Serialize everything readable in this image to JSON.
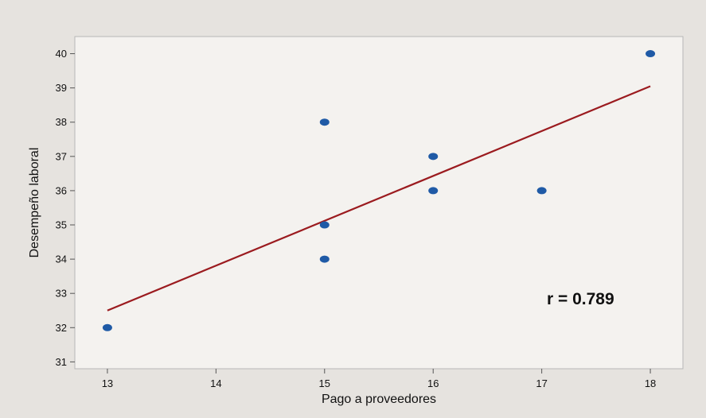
{
  "chart_data": {
    "type": "scatter",
    "title": "",
    "xlabel": "Pago a proveedores",
    "ylabel": "Desempeño laboral",
    "xlim": [
      12.7,
      18.3
    ],
    "ylim": [
      30.8,
      40.5
    ],
    "x_ticks": [
      "13",
      "14",
      "15",
      "16",
      "17",
      "18"
    ],
    "y_ticks": [
      "31",
      "32",
      "33",
      "34",
      "35",
      "36",
      "37",
      "38",
      "39",
      "40"
    ],
    "points": [
      {
        "x": 13,
        "y": 32
      },
      {
        "x": 15,
        "y": 38
      },
      {
        "x": 15,
        "y": 35
      },
      {
        "x": 15,
        "y": 34
      },
      {
        "x": 16,
        "y": 37
      },
      {
        "x": 16,
        "y": 36
      },
      {
        "x": 17,
        "y": 36
      },
      {
        "x": 18,
        "y": 40
      }
    ],
    "fit_line": {
      "x_start": 13,
      "y_start": 32.5,
      "x_end": 18,
      "y_end": 39.05
    },
    "annotation": "r = 0.789",
    "grid": false,
    "colors": {
      "points": "#1f5aa6",
      "fit_line": "#9b1b1f",
      "plot_background": "#f4f2ef",
      "figure_background": "#e6e3df"
    }
  }
}
